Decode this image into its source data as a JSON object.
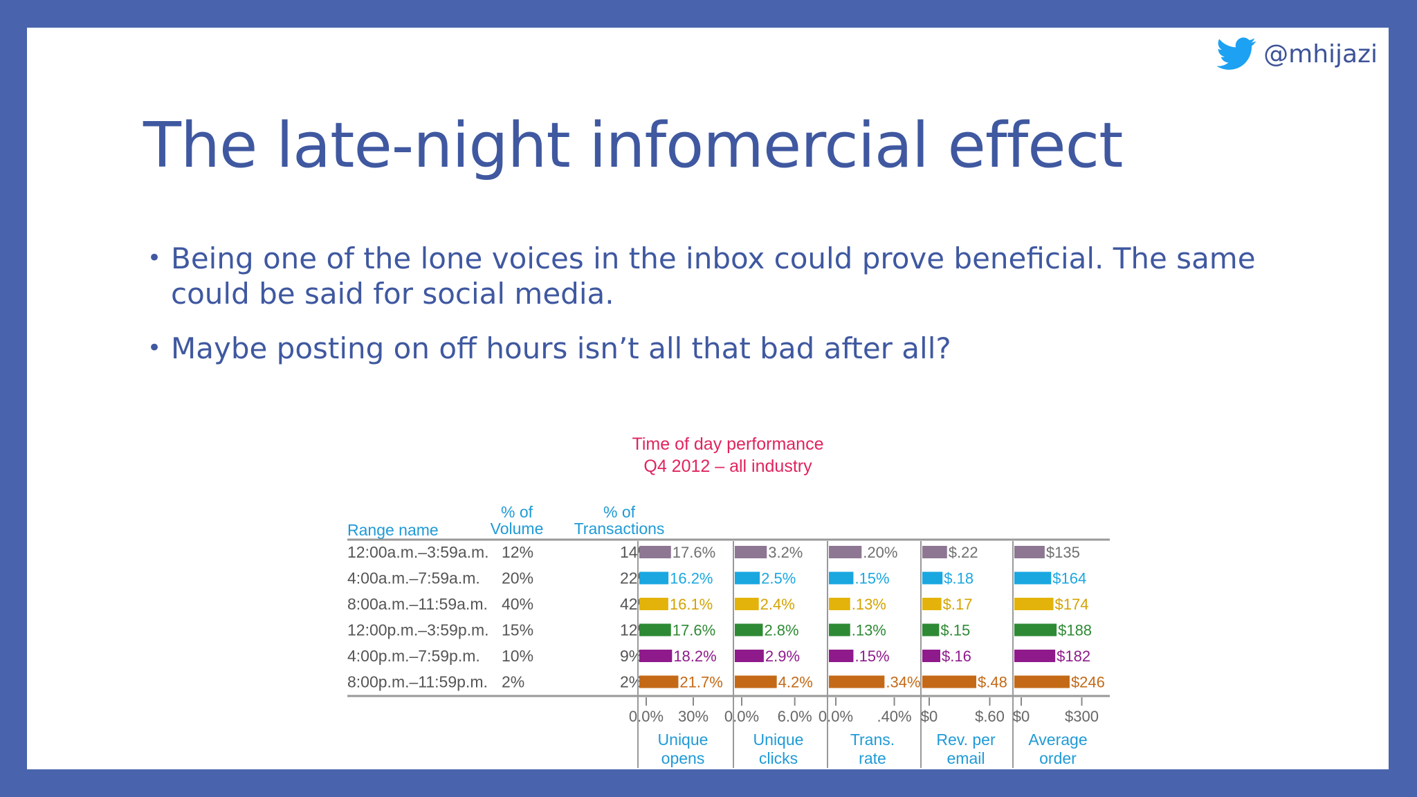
{
  "handle": "@mhijazi",
  "title": "The late-night infomercial effect",
  "bullets": [
    "Being one of the lone voices in the inbox could prove beneficial. The same could be said for social media.",
    "Maybe posting on off hours isn’t all that bad after all?"
  ],
  "colors": {
    "background": "#4964ad",
    "slide": "#ffffff",
    "text": "#3f58a0",
    "twitter": "#1da1f2"
  },
  "chart_data": {
    "type": "bar",
    "title": "Time of day performance",
    "subtitle": "Q4 2012 – all industry",
    "columns": {
      "range": "Range name",
      "volume_top": "% of",
      "volume_bottom": "Volume",
      "transactions_top": "% of",
      "transactions_bottom": "Transactions"
    },
    "categories": [
      "12:00a.m.–3:59a.m.",
      "4:00a.m.–7:59a.m.",
      "8:00a.m.–11:59a.m.",
      "12:00p.m.–3:59p.m.",
      "4:00p.m.–7:59p.m.",
      "8:00p.m.–11:59p.m."
    ],
    "volume": [
      "12%",
      "20%",
      "40%",
      "15%",
      "10%",
      "2%"
    ],
    "transactions": [
      "14%",
      "22%",
      "42%",
      "12%",
      "9%",
      "2%"
    ],
    "row_colors": [
      "#8d7793",
      "#1aa7e0",
      "#e3b30b",
      "#2e8a34",
      "#8f1a8c",
      "#c46a17"
    ],
    "label_colors": [
      "#6f6f6f",
      "#1aa7e0",
      "#d4a200",
      "#2e8a34",
      "#8f1a8c",
      "#c46a17"
    ],
    "series": [
      {
        "name": "Unique opens",
        "label_top": "Unique",
        "label_bottom": "opens",
        "ticks": [
          "0.0%",
          "30%"
        ],
        "xlim": [
          0,
          50
        ],
        "values": [
          17.6,
          16.2,
          16.1,
          17.6,
          18.2,
          21.7
        ],
        "labels": [
          "17.6%",
          "16.2%",
          "16.1%",
          "17.6%",
          "18.2%",
          "21.7%"
        ]
      },
      {
        "name": "Unique clicks",
        "label_top": "Unique",
        "label_bottom": "clicks",
        "ticks": [
          "0.0%",
          "6.0%"
        ],
        "xlim": [
          0,
          9
        ],
        "values": [
          3.2,
          2.5,
          2.4,
          2.8,
          2.9,
          4.2
        ],
        "labels": [
          "3.2%",
          "2.5%",
          "2.4%",
          "2.8%",
          "2.9%",
          "4.2%"
        ]
      },
      {
        "name": "Trans. rate",
        "label_top": "Trans.",
        "label_bottom": "rate",
        "ticks": [
          "0.0%",
          ".40%"
        ],
        "xlim": [
          0,
          0.55
        ],
        "values": [
          0.2,
          0.15,
          0.13,
          0.13,
          0.15,
          0.34
        ],
        "labels": [
          ".20%",
          ".15%",
          ".13%",
          ".13%",
          ".15%",
          ".34%"
        ]
      },
      {
        "name": "Rev. per email",
        "label_top": "Rev. per",
        "label_bottom": "email",
        "ticks": [
          "$0",
          "$.60"
        ],
        "xlim": [
          0,
          0.8
        ],
        "values": [
          0.22,
          0.18,
          0.17,
          0.15,
          0.16,
          0.48
        ],
        "labels": [
          "$.22",
          "$.18",
          "$.17",
          "$.15",
          "$.16",
          "$.48"
        ]
      },
      {
        "name": "Average order",
        "label_top": "Average",
        "label_bottom": "order",
        "ticks": [
          "$0",
          "$300"
        ],
        "xlim": [
          0,
          400
        ],
        "values": [
          135,
          164,
          174,
          188,
          182,
          246
        ],
        "labels": [
          "$135",
          "$164",
          "$174",
          "$188",
          "$182",
          "$246"
        ]
      }
    ]
  }
}
